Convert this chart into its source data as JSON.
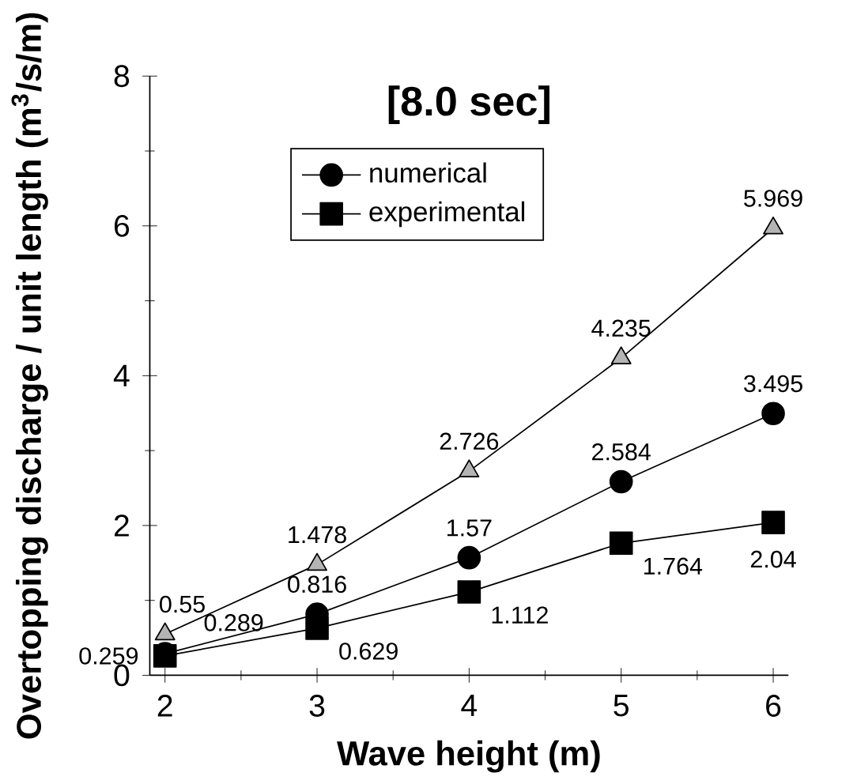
{
  "chart_data": {
    "type": "line",
    "title": "[8.0 sec]",
    "xlabel": "Wave height (m)",
    "ylabel": "Overtopping discharge / unit length (m$^{3}$/s/m)",
    "x": [
      2,
      3,
      4,
      5,
      6
    ],
    "series": [
      {
        "color": "#b4b4b4",
        "marker": "triangle",
        "values": [
          0.55,
          1.478,
          2.726,
          4.235,
          5.969
        ]
      },
      {
        "name": "numerical",
        "color": "#000000",
        "marker": "circle",
        "values": [
          0.289,
          0.816,
          1.57,
          2.584,
          3.495
        ]
      },
      {
        "name": "experimental",
        "color": "#000000",
        "marker": "square",
        "values": [
          0.259,
          0.629,
          1.112,
          1.764,
          2.04
        ]
      }
    ],
    "xlim": [
      1.9,
      6.1
    ],
    "ylim": [
      0,
      8
    ],
    "xticks": [
      2,
      3,
      4,
      5,
      6
    ],
    "yticks": [
      0,
      2,
      4,
      6,
      8
    ],
    "data_labels": true,
    "legend": "top left",
    "grid": false
  }
}
